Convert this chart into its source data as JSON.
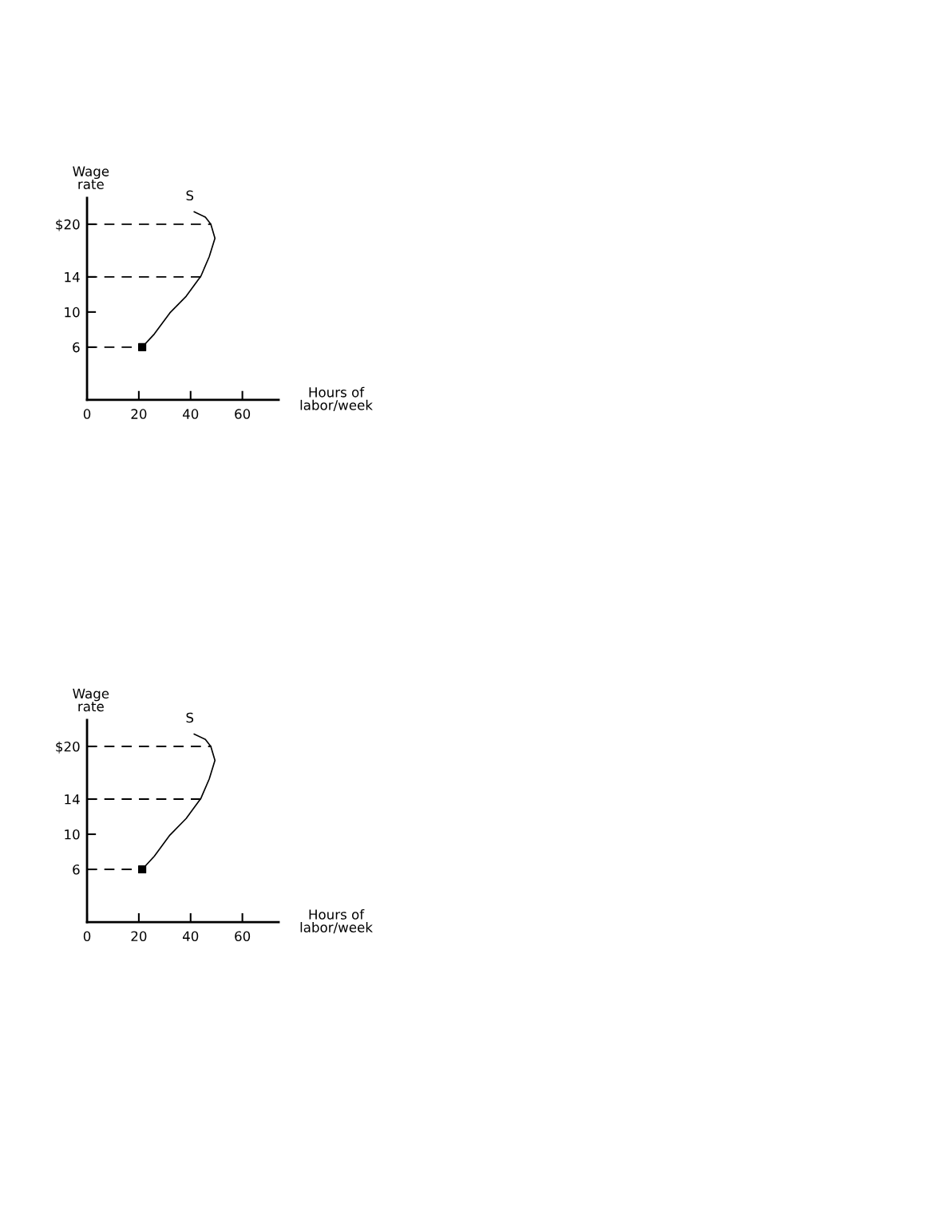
{
  "chart_data": [
    {
      "type": "line",
      "xlabel": "Hours of\nlabor/week",
      "ylabel": "Wage\nrate",
      "xlim": [
        0,
        74
      ],
      "ylim": [
        0,
        23
      ],
      "xticks": [
        0,
        20,
        40,
        60
      ],
      "yticks": [
        6,
        10,
        14,
        {
          "value": 20,
          "label": "$20"
        }
      ],
      "grid": false,
      "legend": false,
      "series": [
        {
          "name": "S",
          "color": "#000000",
          "line_style": "solid",
          "x": [
            21.3,
            26,
            32,
            38.3,
            44,
            47.2,
            49.4,
            47.8,
            45.7,
            41.4
          ],
          "values": [
            6,
            7.5,
            9.9,
            11.8,
            14.1,
            16.3,
            18.4,
            20,
            20.8,
            21.4
          ]
        },
        {
          "color": "#000000",
          "line_style": "dashed",
          "x": [
            0,
            48
          ],
          "values": [
            20,
            20
          ]
        },
        {
          "color": "#000000",
          "line_style": "dashed",
          "x": [
            0,
            44
          ],
          "values": [
            14,
            14
          ]
        },
        {
          "color": "#000000",
          "line_style": "dashed",
          "x": [
            0,
            21.3
          ],
          "values": [
            6,
            6
          ]
        },
        {
          "type": "scatter",
          "color": "#000000",
          "marker": "square",
          "x": [
            21.3
          ],
          "values": [
            6
          ]
        }
      ]
    },
    {
      "type": "line",
      "xlabel": "Hours of\nlabor/week",
      "ylabel": "Wage\nrate",
      "xlim": [
        0,
        74
      ],
      "ylim": [
        0,
        23
      ],
      "xticks": [
        0,
        20,
        40,
        60
      ],
      "yticks": [
        6,
        10,
        14,
        {
          "value": 20,
          "label": "$20"
        }
      ],
      "grid": false,
      "legend": false,
      "series": [
        {
          "name": "S",
          "color": "#000000",
          "line_style": "solid",
          "x": [
            21.3,
            26,
            32,
            38.3,
            44,
            47.2,
            49.4,
            47.8,
            45.7,
            41.4
          ],
          "values": [
            6,
            7.5,
            9.9,
            11.8,
            14.1,
            16.3,
            18.4,
            20,
            20.8,
            21.4
          ]
        },
        {
          "color": "#000000",
          "line_style": "dashed",
          "x": [
            0,
            48
          ],
          "values": [
            20,
            20
          ]
        },
        {
          "color": "#000000",
          "line_style": "dashed",
          "x": [
            0,
            44
          ],
          "values": [
            14,
            14
          ]
        },
        {
          "color": "#000000",
          "line_style": "dashed",
          "x": [
            0,
            21.3
          ],
          "values": [
            6,
            6
          ]
        },
        {
          "type": "scatter",
          "color": "#000000",
          "marker": "square",
          "x": [
            21.3
          ],
          "values": [
            6
          ]
        }
      ]
    }
  ]
}
